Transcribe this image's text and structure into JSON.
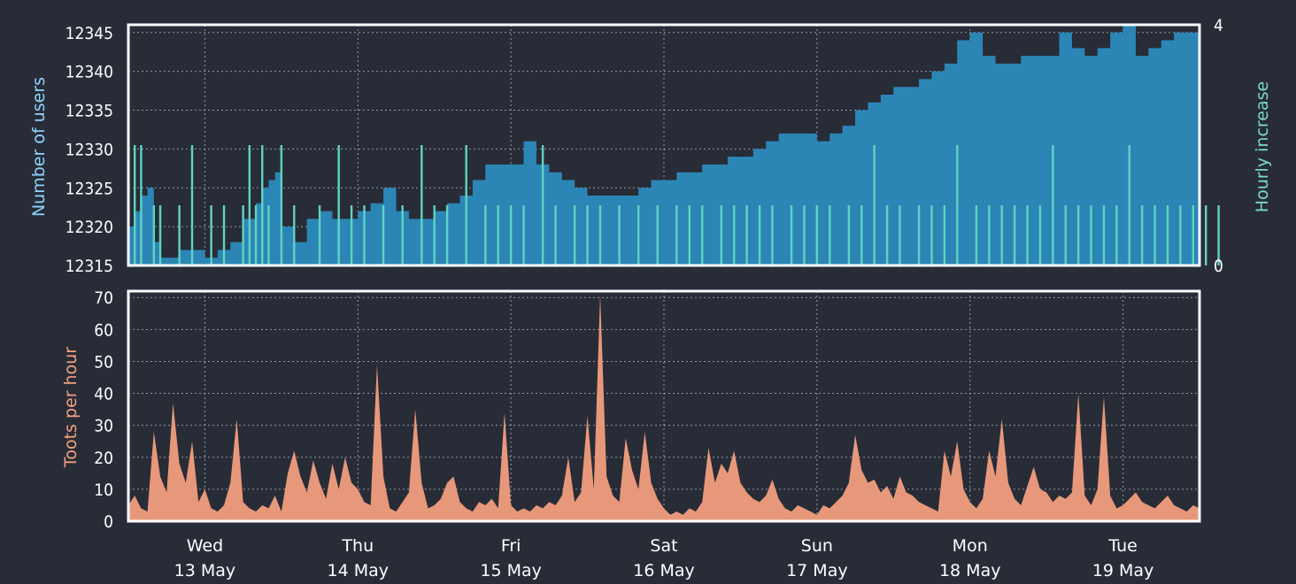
{
  "chart_data": [
    {
      "type": "area",
      "panel": "users",
      "ylabel": "Number of users",
      "ylabel_right": "Hourly increase",
      "ylim": [
        12315,
        12346
      ],
      "yticks": [
        12315,
        12320,
        12325,
        12330,
        12335,
        12340,
        12345
      ],
      "ylim_right": [
        0,
        4
      ],
      "yticks_right": [
        0,
        4
      ],
      "grid": true,
      "colors": {
        "users": "#2b86b6",
        "hourly": "#5fd3c3"
      },
      "series": [
        {
          "name": "Number of users",
          "x_hours": [
            0,
            1,
            2,
            3,
            4,
            5,
            6,
            8,
            10,
            12,
            14,
            16,
            18,
            20,
            21,
            22,
            23,
            24,
            26,
            27,
            28,
            30,
            32,
            33,
            34,
            36,
            38,
            40,
            42,
            44,
            46,
            48,
            50,
            52,
            54,
            56,
            58,
            60,
            62,
            64,
            66,
            68,
            70,
            72,
            74,
            76,
            78,
            80,
            82,
            84,
            86,
            88,
            90,
            92,
            94,
            96,
            98,
            100,
            102,
            104,
            106,
            108,
            110,
            112,
            114,
            116,
            118,
            120,
            122,
            124,
            126,
            128,
            130,
            132,
            134,
            136,
            138,
            140,
            142,
            144,
            146,
            148,
            150,
            152,
            154,
            156,
            158,
            160,
            162,
            164,
            166,
            168,
            170,
            172
          ],
          "values": [
            12320,
            12322,
            12324,
            12325,
            12318,
            12316,
            12316,
            12317,
            12317,
            12316,
            12317,
            12318,
            12321,
            12323,
            12325,
            12326,
            12327,
            12320,
            12318,
            12318,
            12321,
            12322,
            12321,
            12321,
            12321,
            12322,
            12323,
            12325,
            12322,
            12321,
            12321,
            12322,
            12323,
            12324,
            12326,
            12328,
            12328,
            12328,
            12331,
            12328,
            12327,
            12326,
            12325,
            12324,
            12324,
            12324,
            12324,
            12325,
            12326,
            12326,
            12327,
            12327,
            12328,
            12328,
            12329,
            12329,
            12330,
            12331,
            12332,
            12332,
            12332,
            12331,
            12332,
            12333,
            12335,
            12336,
            12337,
            12338,
            12338,
            12339,
            12340,
            12341,
            12344,
            12345,
            12342,
            12341,
            12341,
            12342,
            12342,
            12342,
            12345,
            12343,
            12342,
            12343,
            12345,
            12346,
            12342,
            12343,
            12344,
            12345,
            12345,
            12345,
            12345,
            12345
          ]
        },
        {
          "name": "Hourly increase",
          "axis": "right",
          "x_hours": [
            1,
            2,
            4,
            5,
            8,
            10,
            13,
            15,
            18,
            19,
            20,
            21,
            22,
            24,
            26,
            30,
            33,
            35,
            37,
            40,
            43,
            46,
            48,
            50,
            53,
            56,
            58,
            60,
            62,
            65,
            67,
            70,
            72,
            74,
            77,
            80,
            83,
            86,
            88,
            90,
            93,
            95,
            97,
            99,
            101,
            104,
            106,
            108,
            110,
            113,
            115,
            117,
            119,
            121,
            124,
            126,
            128,
            130,
            133,
            135,
            137,
            139,
            141,
            143,
            145,
            147,
            149,
            151,
            153,
            155,
            157,
            159,
            161,
            163,
            165,
            167,
            169,
            171
          ],
          "values": [
            2,
            2,
            1,
            1,
            1,
            2,
            1,
            1,
            1,
            2,
            1,
            2,
            1,
            2,
            1,
            1,
            2,
            1,
            1,
            1,
            1,
            2,
            1,
            1,
            2,
            1,
            1,
            1,
            1,
            2,
            1,
            1,
            1,
            1,
            1,
            1,
            1,
            1,
            1,
            1,
            1,
            1,
            1,
            1,
            1,
            1,
            1,
            1,
            1,
            1,
            1,
            2,
            1,
            1,
            1,
            1,
            1,
            2,
            1,
            1,
            1,
            1,
            1,
            1,
            2,
            1,
            1,
            1,
            1,
            1,
            2,
            1,
            1,
            1,
            1,
            1,
            1,
            1
          ]
        }
      ]
    },
    {
      "type": "area",
      "panel": "toots",
      "ylabel": "Toots per hour",
      "ylim": [
        0,
        72
      ],
      "yticks": [
        0,
        10,
        20,
        30,
        40,
        50,
        60,
        70
      ],
      "grid": true,
      "colors": {
        "toots": "#e8987a"
      },
      "x_ticks": [
        {
          "day": "Wed",
          "date": "13 May",
          "hour": 12
        },
        {
          "day": "Thu",
          "date": "14 May",
          "hour": 36
        },
        {
          "day": "Fri",
          "date": "15 May",
          "hour": 60
        },
        {
          "day": "Sat",
          "date": "16 May",
          "hour": 84
        },
        {
          "day": "Sun",
          "date": "17 May",
          "hour": 108
        },
        {
          "day": "Mon",
          "date": "18 May",
          "hour": 132
        },
        {
          "day": "Tue",
          "date": "19 May",
          "hour": 156
        }
      ],
      "x_range_hours": [
        0,
        168
      ],
      "series": [
        {
          "name": "Toots per hour",
          "x_hours": [
            0,
            1,
            2,
            3,
            4,
            5,
            6,
            7,
            8,
            9,
            10,
            11,
            12,
            13,
            14,
            15,
            16,
            17,
            18,
            19,
            20,
            21,
            22,
            23,
            24,
            25,
            26,
            27,
            28,
            29,
            30,
            31,
            32,
            33,
            34,
            35,
            36,
            37,
            38,
            39,
            40,
            41,
            42,
            43,
            44,
            45,
            46,
            47,
            48,
            49,
            50,
            51,
            52,
            53,
            54,
            55,
            56,
            57,
            58,
            59,
            60,
            61,
            62,
            63,
            64,
            65,
            66,
            67,
            68,
            69,
            70,
            71,
            72,
            73,
            74,
            75,
            76,
            77,
            78,
            79,
            80,
            81,
            82,
            83,
            84,
            85,
            86,
            87,
            88,
            89,
            90,
            91,
            92,
            93,
            94,
            95,
            96,
            97,
            98,
            99,
            100,
            101,
            102,
            103,
            104,
            105,
            106,
            107,
            108,
            109,
            110,
            111,
            112,
            113,
            114,
            115,
            116,
            117,
            118,
            119,
            120,
            121,
            122,
            123,
            124,
            125,
            126,
            127,
            128,
            129,
            130,
            131,
            132,
            133,
            134,
            135,
            136,
            137,
            138,
            139,
            140,
            141,
            142,
            143,
            144,
            145,
            146,
            147,
            148,
            149,
            150,
            151,
            152,
            153,
            154,
            155,
            156,
            157,
            158,
            159,
            160,
            161,
            162,
            163,
            164,
            165,
            166,
            167,
            168
          ],
          "values": [
            5,
            8,
            4,
            3,
            28,
            14,
            9,
            37,
            18,
            12,
            25,
            6,
            10,
            4,
            3,
            5,
            12,
            32,
            6,
            4,
            3,
            5,
            4,
            8,
            3,
            15,
            22,
            14,
            9,
            19,
            12,
            7,
            18,
            10,
            20,
            12,
            10,
            6,
            5,
            49,
            14,
            4,
            3,
            6,
            9,
            35,
            12,
            4,
            5,
            7,
            12,
            14,
            6,
            4,
            3,
            6,
            5,
            7,
            4,
            34,
            5,
            3,
            4,
            3,
            5,
            4,
            6,
            5,
            8,
            20,
            6,
            9,
            33,
            10,
            71,
            14,
            8,
            6,
            26,
            16,
            10,
            28,
            12,
            7,
            4,
            2,
            3,
            2,
            4,
            3,
            6,
            23,
            12,
            18,
            15,
            22,
            12,
            9,
            7,
            6,
            8,
            13,
            7,
            4,
            3,
            5,
            4,
            3,
            2,
            5,
            4,
            6,
            8,
            12,
            27,
            16,
            12,
            13,
            9,
            11,
            7,
            14,
            9,
            8,
            6,
            5,
            4,
            3,
            22,
            14,
            25,
            10,
            6,
            4,
            7,
            22,
            14,
            32,
            12,
            7,
            5,
            11,
            17,
            10,
            9,
            6,
            8,
            7,
            9,
            40,
            8,
            5,
            10,
            39,
            8,
            4,
            5,
            7,
            9,
            6,
            5,
            4,
            6,
            8,
            5,
            4,
            3,
            5,
            4
          ]
        }
      ]
    }
  ]
}
